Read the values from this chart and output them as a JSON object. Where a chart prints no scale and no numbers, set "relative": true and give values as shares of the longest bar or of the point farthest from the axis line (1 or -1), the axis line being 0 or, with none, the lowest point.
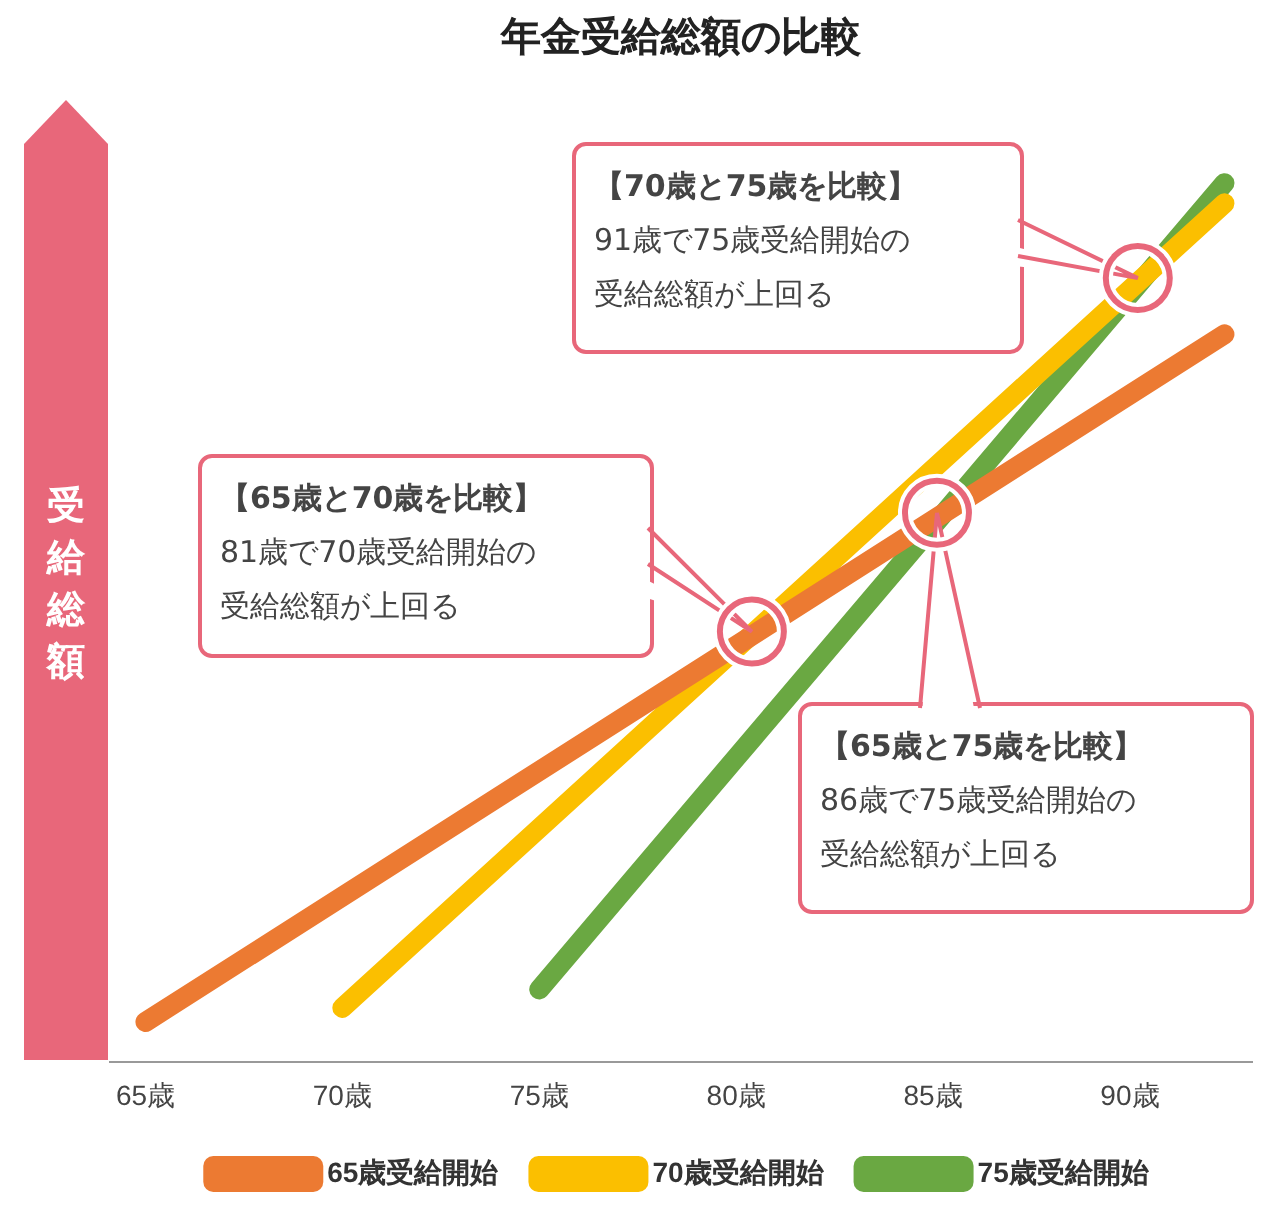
{
  "chart_data": {
    "type": "line",
    "title": "年金受給総額の比較",
    "ylabel": "受給総額",
    "relative": true,
    "xlim": [
      64.1,
      93.1
    ],
    "xticks": [
      {
        "value": 65,
        "label": "65歳"
      },
      {
        "value": 70,
        "label": "70歳"
      },
      {
        "value": 75,
        "label": "75歳"
      },
      {
        "value": 80,
        "label": "80歳"
      },
      {
        "value": 85,
        "label": "85歳"
      },
      {
        "value": 90,
        "label": "90歳"
      }
    ],
    "series": [
      {
        "name": "65歳受給開始",
        "color": "#ec7a32",
        "x": [
          65,
          92.4
        ],
        "values": [
          0.046,
          0.828
        ]
      },
      {
        "name": "70歳受給開始",
        "color": "#fbbf00",
        "x": [
          70,
          92.4
        ],
        "values": [
          0.062,
          0.977
        ]
      },
      {
        "name": "75歳受給開始",
        "color": "#6aa842",
        "x": [
          75,
          92.4
        ],
        "values": [
          0.083,
          1
        ]
      }
    ],
    "annotations": [
      {
        "text": "【65歳と70歳を比較】81歳で70歳受給開始の受給総額が上回る",
        "x": 80.4,
        "y": 0.49
      },
      {
        "text": "【70歳と75歳を比較】91歳で75歳受給開始の受給総額が上回る",
        "x": 90.2,
        "y": 0.892
      },
      {
        "text": "【65歳と75歳を比較】86歳で75歳受給開始の受給総額が上回る",
        "x": 85.1,
        "y": 0.625
      }
    ],
    "legend": "bottom",
    "marker": "none",
    "line_style": "solid"
  }
}
